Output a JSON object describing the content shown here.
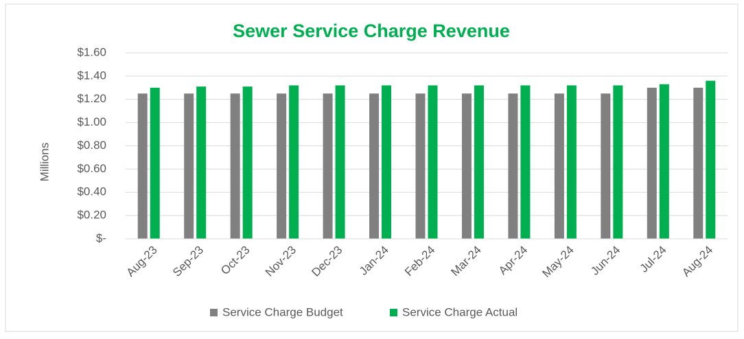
{
  "chart_data": {
    "type": "bar",
    "title": "Sewer Service Charge Revenue",
    "y_label": "Millions",
    "categories": [
      "Aug-23",
      "Sep-23",
      "Oct-23",
      "Nov-23",
      "Dec-23",
      "Jan-24",
      "Feb-24",
      "Mar-24",
      "Apr-24",
      "May-24",
      "Jun-24",
      "Jul-24",
      "Aug-24"
    ],
    "series": [
      {
        "name": "Service Charge Budget",
        "color": "#808080",
        "values": [
          1.25,
          1.25,
          1.25,
          1.25,
          1.25,
          1.25,
          1.25,
          1.25,
          1.25,
          1.25,
          1.25,
          1.3,
          1.3
        ]
      },
      {
        "name": "Service Charge Actual",
        "color": "#00b050",
        "values": [
          1.3,
          1.31,
          1.31,
          1.32,
          1.32,
          1.32,
          1.32,
          1.32,
          1.32,
          1.32,
          1.32,
          1.33,
          1.36
        ]
      }
    ],
    "ylim": [
      0,
      1.6
    ],
    "yticks": [
      {
        "value": 0,
        "label": "$-"
      },
      {
        "value": 0.2,
        "label": "$0.20"
      },
      {
        "value": 0.4,
        "label": "$0.40"
      },
      {
        "value": 0.6,
        "label": "$0.60"
      },
      {
        "value": 0.8,
        "label": "$0.80"
      },
      {
        "value": 1.0,
        "label": "$1.00"
      },
      {
        "value": 1.2,
        "label": "$1.20"
      },
      {
        "value": 1.4,
        "label": "$1.40"
      },
      {
        "value": 1.6,
        "label": "$1.60"
      }
    ],
    "grid": true,
    "legend": "bottom"
  }
}
